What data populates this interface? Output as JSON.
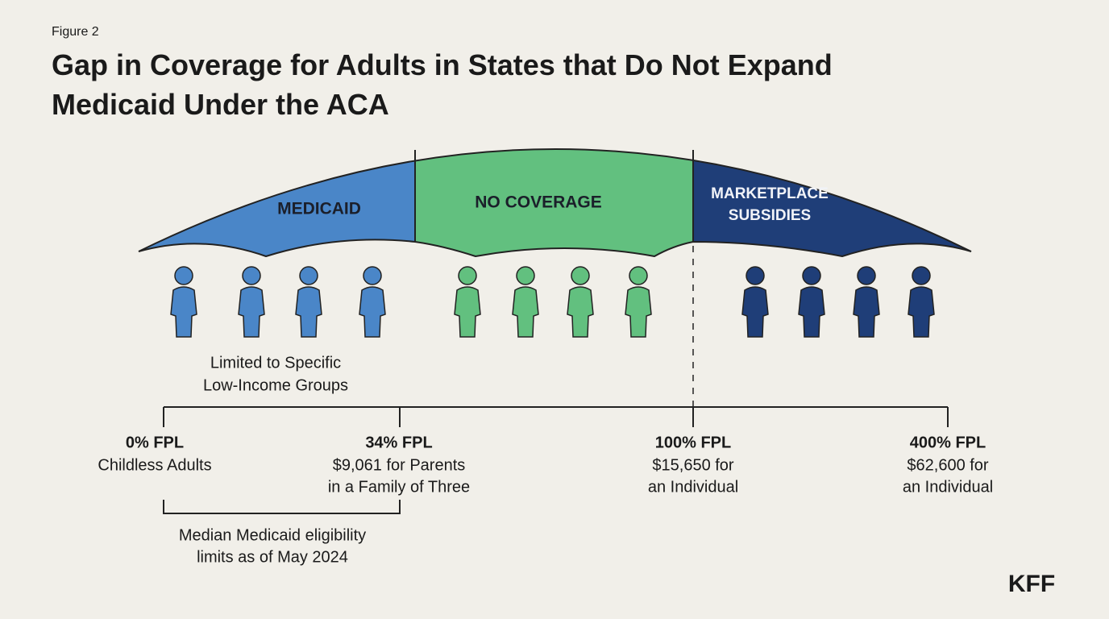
{
  "header": {
    "figure_label": "Figure 2",
    "title_lines": [
      "Gap in Coverage for Adults in States that Do Not Expand",
      "Medicaid Under the ACA"
    ]
  },
  "segments": [
    {
      "label_lines": [
        "MEDICAID"
      ]
    },
    {
      "label_lines": [
        "NO COVERAGE"
      ]
    },
    {
      "label_lines": [
        "MARKETPLACE",
        "SUBSIDIES"
      ]
    }
  ],
  "note_lines": [
    "Limited to Specific",
    "Low-Income Groups"
  ],
  "markers": [
    {
      "label": "0% FPL",
      "detail_lines": [
        "Childless Adults"
      ]
    },
    {
      "label": "34% FPL",
      "detail_lines": [
        "$9,061 for Parents",
        "in a Family of Three"
      ]
    },
    {
      "label": "100% FPL",
      "detail_lines": [
        "$15,650 for",
        "an Individual"
      ]
    },
    {
      "label": "400% FPL",
      "detail_lines": [
        "$62,600 for",
        "an Individual"
      ]
    }
  ],
  "bracket_note_lines": [
    "Median Medicaid eligibility",
    "limits as of May 2024"
  ],
  "logo": "KFF"
}
